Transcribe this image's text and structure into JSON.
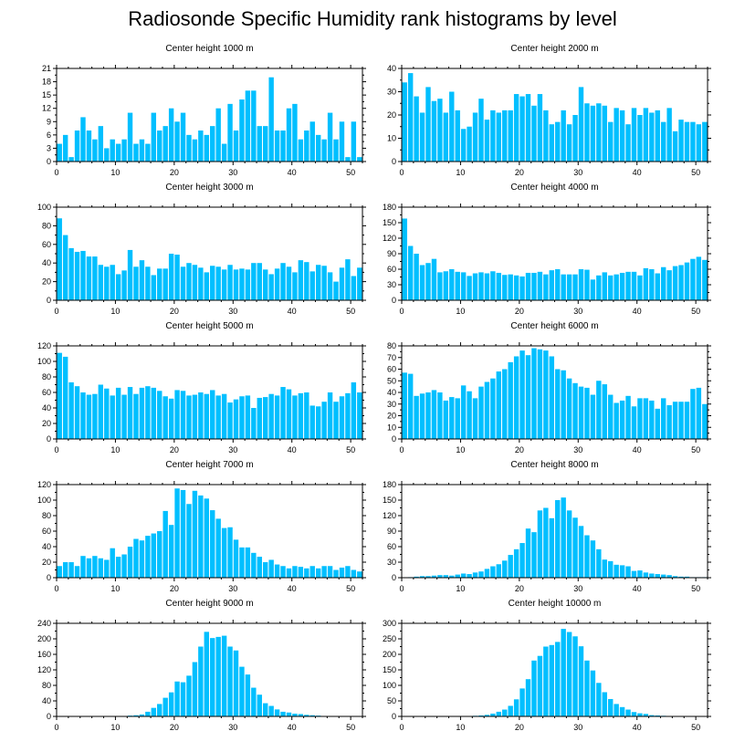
{
  "title": "Radiosonde Specific Humidity rank histograms by level",
  "bar_color": "#00BFFF",
  "chart_data": [
    {
      "type": "bar",
      "title": "Center height 1000 m",
      "ylim": [
        0,
        21
      ],
      "yticks": [
        0,
        3,
        6,
        9,
        12,
        15,
        18,
        21
      ],
      "xlim": [
        0,
        52
      ],
      "xticks": [
        0,
        10,
        20,
        30,
        40,
        50
      ],
      "values": [
        4,
        6,
        1,
        7,
        10,
        7,
        5,
        8,
        3,
        5,
        4,
        5,
        11,
        4,
        5,
        4,
        11,
        7,
        8,
        12,
        9,
        11,
        6,
        5,
        7,
        6,
        8,
        12,
        4,
        13,
        7,
        14,
        16,
        16,
        8,
        8,
        19,
        7,
        7,
        12,
        13,
        5,
        7,
        9,
        6,
        5,
        11,
        5,
        9,
        1,
        9,
        1
      ]
    },
    {
      "type": "bar",
      "title": "Center height 2000 m",
      "ylim": [
        0,
        40
      ],
      "yticks": [
        0,
        10,
        20,
        30,
        40
      ],
      "xlim": [
        0,
        52
      ],
      "xticks": [
        0,
        10,
        20,
        30,
        40,
        50
      ],
      "values": [
        34,
        38,
        28,
        21,
        32,
        26,
        27,
        21,
        30,
        22,
        14,
        15,
        21,
        27,
        18,
        22,
        21,
        22,
        22,
        29,
        28,
        29,
        24,
        29,
        22,
        16,
        17,
        22,
        16,
        20,
        32,
        25,
        24,
        25,
        24,
        17,
        23,
        22,
        16,
        23,
        20,
        23,
        21,
        22,
        17,
        23,
        13,
        18,
        17,
        17,
        16,
        17
      ]
    },
    {
      "type": "bar",
      "title": "Center height 3000 m",
      "ylim": [
        0,
        100
      ],
      "yticks": [
        0,
        20,
        40,
        60,
        80,
        100
      ],
      "xlim": [
        0,
        52
      ],
      "xticks": [
        0,
        10,
        20,
        30,
        40,
        50
      ],
      "values": [
        88,
        70,
        56,
        52,
        53,
        47,
        47,
        38,
        36,
        38,
        28,
        32,
        54,
        36,
        43,
        36,
        27,
        34,
        34,
        50,
        49,
        36,
        40,
        38,
        35,
        30,
        37,
        36,
        33,
        38,
        33,
        34,
        33,
        40,
        40,
        33,
        28,
        34,
        40,
        36,
        30,
        43,
        41,
        31,
        38,
        37,
        30,
        20,
        35,
        44,
        26,
        35
      ]
    },
    {
      "type": "bar",
      "title": "Center height 4000 m",
      "ylim": [
        0,
        180
      ],
      "yticks": [
        0,
        30,
        60,
        90,
        120,
        150,
        180
      ],
      "xlim": [
        0,
        52
      ],
      "xticks": [
        0,
        10,
        20,
        30,
        40,
        50
      ],
      "values": [
        158,
        105,
        90,
        68,
        72,
        80,
        54,
        56,
        60,
        55,
        54,
        47,
        52,
        54,
        52,
        56,
        53,
        49,
        50,
        48,
        46,
        53,
        53,
        55,
        50,
        58,
        60,
        50,
        50,
        50,
        60,
        59,
        40,
        48,
        54,
        48,
        50,
        53,
        55,
        55,
        48,
        62,
        60,
        52,
        64,
        58,
        66,
        68,
        73,
        80,
        84,
        78
      ]
    },
    {
      "type": "bar",
      "title": "Center height 5000 m",
      "ylim": [
        0,
        120
      ],
      "yticks": [
        0,
        20,
        40,
        60,
        80,
        100,
        120
      ],
      "xlim": [
        0,
        52
      ],
      "xticks": [
        0,
        10,
        20,
        30,
        40,
        50
      ],
      "values": [
        111,
        106,
        73,
        68,
        60,
        57,
        58,
        70,
        65,
        56,
        66,
        57,
        67,
        58,
        66,
        68,
        66,
        62,
        55,
        52,
        63,
        62,
        56,
        57,
        60,
        58,
        63,
        56,
        58,
        47,
        51,
        55,
        56,
        40,
        53,
        54,
        58,
        56,
        67,
        64,
        56,
        59,
        60,
        43,
        42,
        48,
        60,
        48,
        55,
        59,
        73,
        60
      ]
    },
    {
      "type": "bar",
      "title": "Center height 6000 m",
      "ylim": [
        0,
        80
      ],
      "yticks": [
        0,
        10,
        20,
        30,
        40,
        50,
        60,
        70,
        80
      ],
      "xlim": [
        0,
        52
      ],
      "xticks": [
        0,
        10,
        20,
        30,
        40,
        50
      ],
      "values": [
        57,
        56,
        37,
        39,
        40,
        42,
        40,
        33,
        36,
        35,
        46,
        41,
        35,
        45,
        49,
        52,
        58,
        60,
        66,
        71,
        76,
        72,
        78,
        77,
        76,
        71,
        60,
        59,
        52,
        48,
        45,
        44,
        38,
        50,
        47,
        38,
        31,
        33,
        37,
        28,
        35,
        35,
        33,
        26,
        35,
        29,
        32,
        32,
        32,
        43,
        44,
        30
      ]
    },
    {
      "type": "bar",
      "title": "Center height 7000 m",
      "ylim": [
        0,
        120
      ],
      "yticks": [
        0,
        20,
        40,
        60,
        80,
        100,
        120
      ],
      "xlim": [
        0,
        52
      ],
      "xticks": [
        0,
        10,
        20,
        30,
        40,
        50
      ],
      "values": [
        15,
        20,
        20,
        15,
        28,
        25,
        28,
        25,
        23,
        38,
        27,
        30,
        40,
        50,
        48,
        54,
        57,
        60,
        86,
        68,
        115,
        113,
        95,
        112,
        106,
        102,
        87,
        76,
        64,
        65,
        49,
        39,
        39,
        32,
        27,
        20,
        23,
        17,
        15,
        12,
        15,
        14,
        12,
        15,
        12,
        15,
        15,
        10,
        13,
        15,
        10,
        8
      ]
    },
    {
      "type": "bar",
      "title": "Center height 8000 m",
      "ylim": [
        0,
        180
      ],
      "yticks": [
        0,
        30,
        60,
        90,
        120,
        150,
        180
      ],
      "xlim": [
        0,
        52
      ],
      "xticks": [
        0,
        10,
        20,
        30,
        40,
        50
      ],
      "values": [
        0,
        1,
        2,
        3,
        3,
        4,
        5,
        5,
        4,
        6,
        8,
        7,
        10,
        12,
        17,
        22,
        26,
        33,
        44,
        55,
        67,
        95,
        88,
        130,
        135,
        115,
        150,
        155,
        130,
        116,
        100,
        82,
        72,
        55,
        35,
        32,
        25,
        24,
        22,
        13,
        14,
        10,
        8,
        7,
        6,
        5,
        3,
        2,
        2,
        1,
        1,
        1
      ]
    },
    {
      "type": "bar",
      "title": "Center height 9000 m",
      "ylim": [
        0,
        240
      ],
      "yticks": [
        0,
        40,
        80,
        120,
        160,
        200,
        240
      ],
      "xlim": [
        0,
        52
      ],
      "xticks": [
        0,
        10,
        20,
        30,
        40,
        50
      ],
      "values": [
        0,
        0,
        0,
        0,
        0,
        0,
        0,
        0,
        0,
        1,
        1,
        1,
        2,
        3,
        5,
        12,
        22,
        32,
        48,
        62,
        90,
        88,
        105,
        140,
        180,
        218,
        202,
        205,
        208,
        180,
        170,
        128,
        108,
        74,
        56,
        34,
        27,
        18,
        12,
        10,
        7,
        6,
        4,
        3,
        2,
        1,
        1,
        1,
        0,
        0,
        0,
        0
      ]
    },
    {
      "type": "bar",
      "title": "Center height 10000 m",
      "ylim": [
        0,
        300
      ],
      "yticks": [
        0,
        50,
        100,
        150,
        200,
        250,
        300
      ],
      "xlim": [
        0,
        52
      ],
      "xticks": [
        0,
        10,
        20,
        30,
        40,
        50
      ],
      "values": [
        0,
        0,
        0,
        0,
        0,
        0,
        0,
        0,
        0,
        1,
        1,
        1,
        2,
        3,
        5,
        9,
        15,
        22,
        34,
        55,
        90,
        120,
        180,
        195,
        225,
        230,
        240,
        282,
        272,
        258,
        226,
        180,
        148,
        108,
        78,
        56,
        40,
        30,
        22,
        14,
        10,
        8,
        4,
        3,
        2,
        1,
        1,
        1,
        0,
        0,
        0,
        0
      ]
    }
  ]
}
